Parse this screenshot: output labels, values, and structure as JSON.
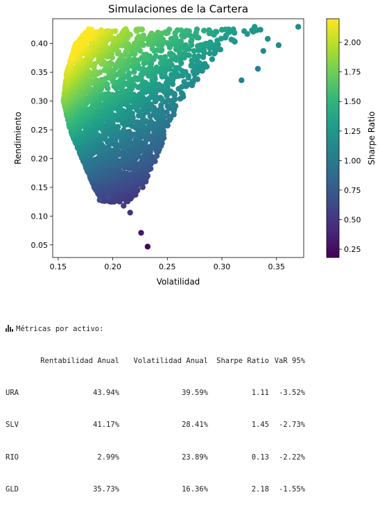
{
  "chart_data": {
    "type": "scatter",
    "title": "Simulaciones de la Cartera",
    "xlabel": "Volatilidad",
    "ylabel": "Rendimiento",
    "xlim": [
      0.145,
      0.375
    ],
    "ylim": [
      0.028,
      0.443
    ],
    "xticks": [
      "0.15",
      "0.20",
      "0.25",
      "0.30",
      "0.35"
    ],
    "xtick_values": [
      0.15,
      0.2,
      0.25,
      0.3,
      0.35
    ],
    "yticks": [
      "0.05",
      "0.10",
      "0.15",
      "0.20",
      "0.25",
      "0.30",
      "0.35",
      "0.40"
    ],
    "ytick_values": [
      0.05,
      0.1,
      0.15,
      0.2,
      0.25,
      0.3,
      0.35,
      0.4
    ],
    "grid": false,
    "colorbar": {
      "label": "Sharpe Ratio",
      "range": [
        0.18,
        2.2
      ],
      "ticks": [
        "0.25",
        "0.50",
        "0.75",
        "1.00",
        "1.25",
        "1.50",
        "1.75",
        "2.00"
      ],
      "tick_values": [
        0.25,
        0.5,
        0.75,
        1.0,
        1.25,
        1.5,
        1.75,
        2.0
      ],
      "colormap": "viridis",
      "stops": [
        "#440154",
        "#482878",
        "#3e4989",
        "#31688e",
        "#26828e",
        "#1f9e89",
        "#35b779",
        "#6ece58",
        "#b5de2b",
        "#fde725"
      ]
    },
    "points": [
      {
        "x": 0.37,
        "y": 0.429,
        "c": 1.16
      },
      {
        "x": 0.352,
        "y": 0.397,
        "c": 1.13
      },
      {
        "x": 0.342,
        "y": 0.408,
        "c": 1.19
      },
      {
        "x": 0.338,
        "y": 0.387,
        "c": 1.14
      },
      {
        "x": 0.333,
        "y": 0.356,
        "c": 1.07
      },
      {
        "x": 0.33,
        "y": 0.429,
        "c": 1.29
      },
      {
        "x": 0.318,
        "y": 0.336,
        "c": 1.06
      },
      {
        "x": 0.232,
        "y": 0.047,
        "c": 0.2
      },
      {
        "x": 0.226,
        "y": 0.071,
        "c": 0.31
      },
      {
        "x": 0.216,
        "y": 0.106,
        "c": 0.49
      },
      {
        "x": 0.21,
        "y": 0.118,
        "c": 0.55
      },
      {
        "x": 0.196,
        "y": 0.134,
        "c": 0.66
      },
      {
        "x": 0.188,
        "y": 0.128,
        "c": 0.68
      }
    ],
    "cloud": {
      "count": 2600,
      "return_range": [
        0.125,
        0.425
      ],
      "lower_volatility_edge": [
        [
          0.125,
          0.191
        ],
        [
          0.15,
          0.183
        ],
        [
          0.2,
          0.172
        ],
        [
          0.25,
          0.161
        ],
        [
          0.3,
          0.155
        ],
        [
          0.35,
          0.158
        ],
        [
          0.4,
          0.166
        ],
        [
          0.425,
          0.178
        ]
      ],
      "upper_volatility_edge": [
        [
          0.125,
          0.215
        ],
        [
          0.15,
          0.228
        ],
        [
          0.2,
          0.24
        ],
        [
          0.25,
          0.25
        ],
        [
          0.3,
          0.262
        ],
        [
          0.35,
          0.283
        ],
        [
          0.39,
          0.3
        ],
        [
          0.41,
          0.318
        ],
        [
          0.425,
          0.338
        ]
      ]
    }
  },
  "metrics": {
    "heading": "Métricas por activo:",
    "icon": "bar-chart-icon",
    "columns": [
      "Rentabilidad Anual",
      "Volatilidad Anual",
      "Sharpe Ratio",
      "VaR 95%"
    ],
    "rows": [
      {
        "asset": "URA",
        "ret": "43.94%",
        "vol": "39.59%",
        "sharpe": "1.11",
        "var": "-3.52%"
      },
      {
        "asset": "SLV",
        "ret": "41.17%",
        "vol": "28.41%",
        "sharpe": "1.45",
        "var": "-2.73%"
      },
      {
        "asset": "RIO",
        "ret": "2.99%",
        "vol": "23.89%",
        "sharpe": "0.13",
        "var": "-2.22%"
      },
      {
        "asset": "GLD",
        "ret": "35.73%",
        "vol": "16.36%",
        "sharpe": "2.18",
        "var": "-1.55%"
      }
    ]
  }
}
